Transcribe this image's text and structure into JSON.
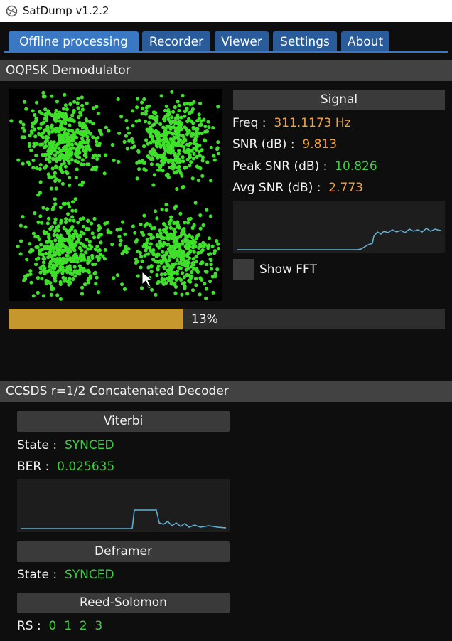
{
  "window": {
    "title": "SatDump v1.2.2"
  },
  "tabs": [
    "Offline processing",
    "Recorder",
    "Viewer",
    "Settings",
    "About"
  ],
  "demodulator": {
    "title": "OQPSK Demodulator",
    "signal": {
      "header": "Signal",
      "rows": [
        {
          "label": "Freq :",
          "value": "311.1173 Hz",
          "color": "#f2a33a"
        },
        {
          "label": "SNR (dB) :",
          "value": "9.813",
          "color": "#f2a33a"
        },
        {
          "label": "Peak SNR (dB) :",
          "value": "10.826",
          "color": "#3ccf3c"
        },
        {
          "label": "Avg SNR (dB) :",
          "value": "2.773",
          "color": "#f2a33a"
        }
      ]
    },
    "show_fft": "Show FFT",
    "progress": "13%"
  },
  "decoder": {
    "title": "CCSDS r=1/2 Concatenated Decoder",
    "viterbi": {
      "header": "Viterbi",
      "rows": [
        {
          "label": "State :",
          "value": "SYNCED",
          "color": "#3ccf3c"
        },
        {
          "label": "BER :",
          "value": "0.025635",
          "color": "#3ccf3c"
        }
      ]
    },
    "deframer": {
      "header": "Deframer",
      "rows": [
        {
          "label": "State :",
          "value": "SYNCED",
          "color": "#3ccf3c"
        }
      ]
    },
    "reed_solomon": {
      "header": "Reed-Solomon",
      "label": "RS :",
      "values": [
        "0",
        "1",
        "2",
        "3"
      ],
      "color": "#3ccf3c"
    }
  }
}
